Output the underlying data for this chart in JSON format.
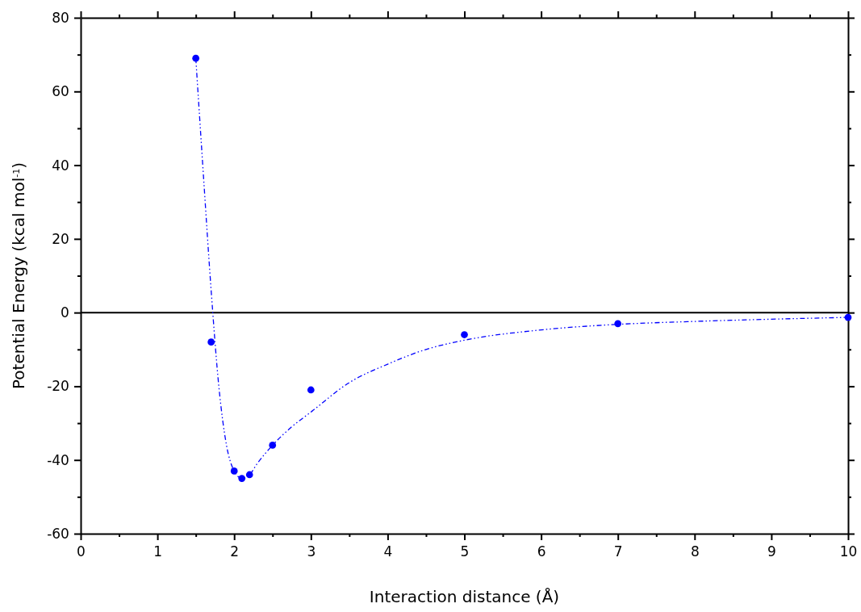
{
  "chart_data": {
    "type": "scatter",
    "xlabel": "Interaction distance (Å)",
    "ylabel": "Potential Energy (kcal mol$^{-1}$)",
    "xlim": [
      0,
      10
    ],
    "ylim": [
      -60,
      80
    ],
    "xticks": [
      0,
      {
        "value": 0.5,
        "label": null
      },
      1,
      {
        "value": 1.5,
        "label": null
      },
      2,
      {
        "value": 2.5,
        "label": null
      },
      3,
      {
        "value": 3.5,
        "label": null
      },
      4,
      {
        "value": 4.5,
        "label": null
      },
      5,
      {
        "value": 5.5,
        "label": null
      },
      6,
      {
        "value": 6.5,
        "label": null
      },
      7,
      {
        "value": 7.5,
        "label": null
      },
      8,
      {
        "value": 8.5,
        "label": null
      },
      9,
      {
        "value": 9.5,
        "label": null
      },
      10
    ],
    "yticks": [
      -60,
      {
        "value": -50,
        "label": null
      },
      -40,
      {
        "value": -30,
        "label": null
      },
      -20,
      {
        "value": -10,
        "label": null
      },
      0,
      {
        "value": 10,
        "label": null
      },
      20,
      {
        "value": 30,
        "label": null
      },
      40,
      {
        "value": 50,
        "label": null
      },
      60,
      {
        "value": 70,
        "label": null
      },
      80
    ],
    "ref_lines": [
      {
        "axis": "y",
        "value": 0,
        "color": "#000000"
      }
    ],
    "series": [
      {
        "type": "line",
        "color": "#0000ff",
        "line_style": "dashed",
        "marker": "none",
        "x": [
          1.5,
          1.6,
          1.7,
          1.8,
          1.9,
          2.0,
          2.1,
          2.2,
          2.3,
          2.5,
          2.75,
          3.0,
          3.5,
          4,
          4.5,
          5,
          6,
          7,
          8,
          9,
          10
        ],
        "values": [
          69,
          37,
          6,
          -20,
          -36,
          -43,
          -45,
          -44,
          -41,
          -36,
          -31,
          -27,
          -19,
          -14,
          -10,
          -7.5,
          -4.7,
          -3.2,
          -2.4,
          -1.8,
          -1.3
        ]
      },
      {
        "color": "#0000ff",
        "marker": "circle",
        "x": [
          1.5,
          1.7,
          2.0,
          2.1,
          2.2,
          2.5,
          3.0,
          5.0,
          7.0,
          10
        ],
        "values": [
          69,
          -8,
          -43,
          -45,
          -44,
          -36,
          -21,
          -6,
          -3,
          -1.3
        ]
      }
    ]
  }
}
